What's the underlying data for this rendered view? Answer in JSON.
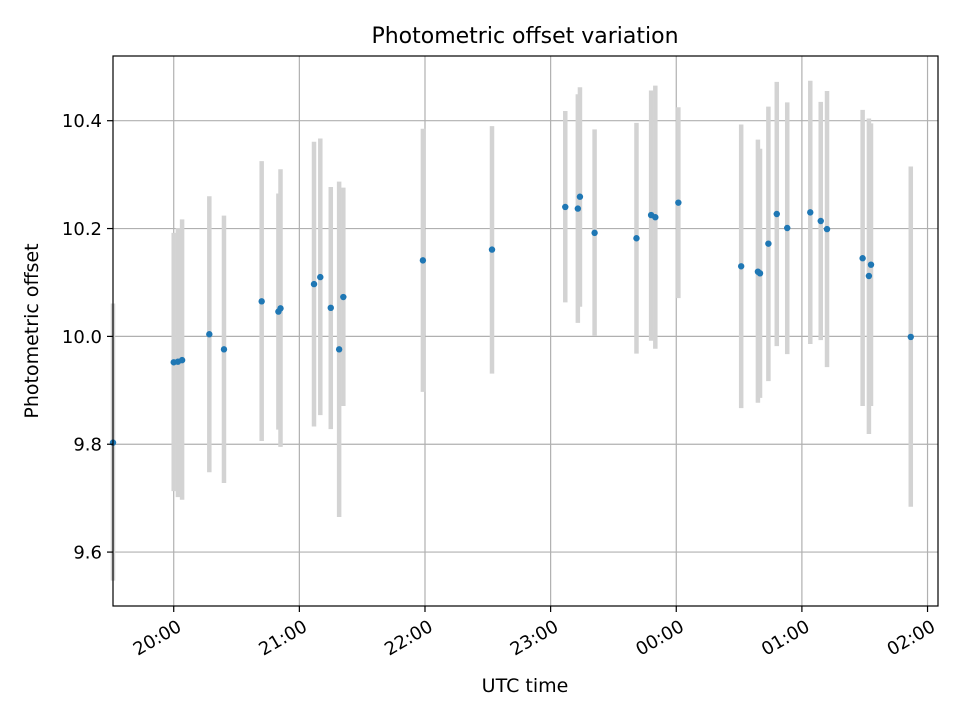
{
  "chart_data": {
    "type": "scatter",
    "title": "Photometric offset variation",
    "xlabel": "UTC time",
    "ylabel": "Photometric offset",
    "x_axis_kind": "time",
    "xlim": [
      "19:31",
      "02:05"
    ],
    "ylim": [
      9.5,
      10.52
    ],
    "x_ticks": [
      "20:00",
      "21:00",
      "22:00",
      "23:00",
      "00:00",
      "01:00",
      "02:00"
    ],
    "y_ticks": [
      9.6,
      9.8,
      10.0,
      10.2,
      10.4
    ],
    "y_tick_labels": [
      "9.6",
      "9.8",
      "10.0",
      "10.2",
      "10.4"
    ],
    "grid": true,
    "legend": null,
    "colors": {
      "marker": "#1f77b4",
      "errorbar": "#d3d3d3",
      "grid": "#b0b0b0",
      "axes": "#000000"
    },
    "series": [
      {
        "marker": "dot",
        "points": [
          {
            "x": "19:31",
            "y": 9.803,
            "ylow": 9.547,
            "yhigh": 10.061
          },
          {
            "x": "20:00",
            "y": 9.952,
            "ylow": 9.713,
            "yhigh": 10.192
          },
          {
            "x": "20:02",
            "y": 9.953,
            "ylow": 9.702,
            "yhigh": 10.201
          },
          {
            "x": "20:04",
            "y": 9.956,
            "ylow": 9.697,
            "yhigh": 10.217
          },
          {
            "x": "20:17",
            "y": 10.004,
            "ylow": 9.748,
            "yhigh": 10.26
          },
          {
            "x": "20:24",
            "y": 9.976,
            "ylow": 9.728,
            "yhigh": 10.224
          },
          {
            "x": "20:42",
            "y": 10.065,
            "ylow": 9.806,
            "yhigh": 10.325
          },
          {
            "x": "20:50",
            "y": 10.046,
            "ylow": 9.827,
            "yhigh": 10.265
          },
          {
            "x": "20:51",
            "y": 10.052,
            "ylow": 9.795,
            "yhigh": 10.31
          },
          {
            "x": "21:07",
            "y": 10.097,
            "ylow": 9.833,
            "yhigh": 10.361
          },
          {
            "x": "21:10",
            "y": 10.11,
            "ylow": 9.854,
            "yhigh": 10.367
          },
          {
            "x": "21:15",
            "y": 10.053,
            "ylow": 9.828,
            "yhigh": 10.277
          },
          {
            "x": "21:19",
            "y": 9.976,
            "ylow": 9.665,
            "yhigh": 10.287
          },
          {
            "x": "21:21",
            "y": 10.073,
            "ylow": 9.871,
            "yhigh": 10.276
          },
          {
            "x": "21:59",
            "y": 10.141,
            "ylow": 9.897,
            "yhigh": 10.385
          },
          {
            "x": "22:32",
            "y": 10.161,
            "ylow": 9.931,
            "yhigh": 10.39
          },
          {
            "x": "23:07",
            "y": 10.24,
            "ylow": 10.063,
            "yhigh": 10.418
          },
          {
            "x": "23:13",
            "y": 10.237,
            "ylow": 10.025,
            "yhigh": 10.449
          },
          {
            "x": "23:14",
            "y": 10.259,
            "ylow": 10.055,
            "yhigh": 10.462
          },
          {
            "x": "23:21",
            "y": 10.192,
            "ylow": 10.001,
            "yhigh": 10.384
          },
          {
            "x": "23:41",
            "y": 10.182,
            "ylow": 9.968,
            "yhigh": 10.396
          },
          {
            "x": "23:48",
            "y": 10.225,
            "ylow": 9.992,
            "yhigh": 10.456
          },
          {
            "x": "23:50",
            "y": 10.221,
            "ylow": 9.977,
            "yhigh": 10.465
          },
          {
            "x": "00:01",
            "y": 10.248,
            "ylow": 10.071,
            "yhigh": 10.425
          },
          {
            "x": "00:31",
            "y": 10.13,
            "ylow": 9.867,
            "yhigh": 10.393
          },
          {
            "x": "00:39",
            "y": 10.12,
            "ylow": 9.877,
            "yhigh": 10.365
          },
          {
            "x": "00:40",
            "y": 10.117,
            "ylow": 9.886,
            "yhigh": 10.348
          },
          {
            "x": "00:44",
            "y": 10.172,
            "ylow": 9.917,
            "yhigh": 10.426
          },
          {
            "x": "00:48",
            "y": 10.227,
            "ylow": 9.982,
            "yhigh": 10.472
          },
          {
            "x": "00:53",
            "y": 10.201,
            "ylow": 9.967,
            "yhigh": 10.434
          },
          {
            "x": "01:04",
            "y": 10.23,
            "ylow": 9.986,
            "yhigh": 10.474
          },
          {
            "x": "01:09",
            "y": 10.214,
            "ylow": 9.993,
            "yhigh": 10.435
          },
          {
            "x": "01:12",
            "y": 10.199,
            "ylow": 9.943,
            "yhigh": 10.455
          },
          {
            "x": "01:29",
            "y": 10.145,
            "ylow": 9.871,
            "yhigh": 10.42
          },
          {
            "x": "01:32",
            "y": 10.112,
            "ylow": 9.819,
            "yhigh": 10.404
          },
          {
            "x": "01:33",
            "y": 10.133,
            "ylow": 9.871,
            "yhigh": 10.395
          },
          {
            "x": "01:52",
            "y": 9.999,
            "ylow": 9.684,
            "yhigh": 10.315
          }
        ]
      }
    ]
  }
}
